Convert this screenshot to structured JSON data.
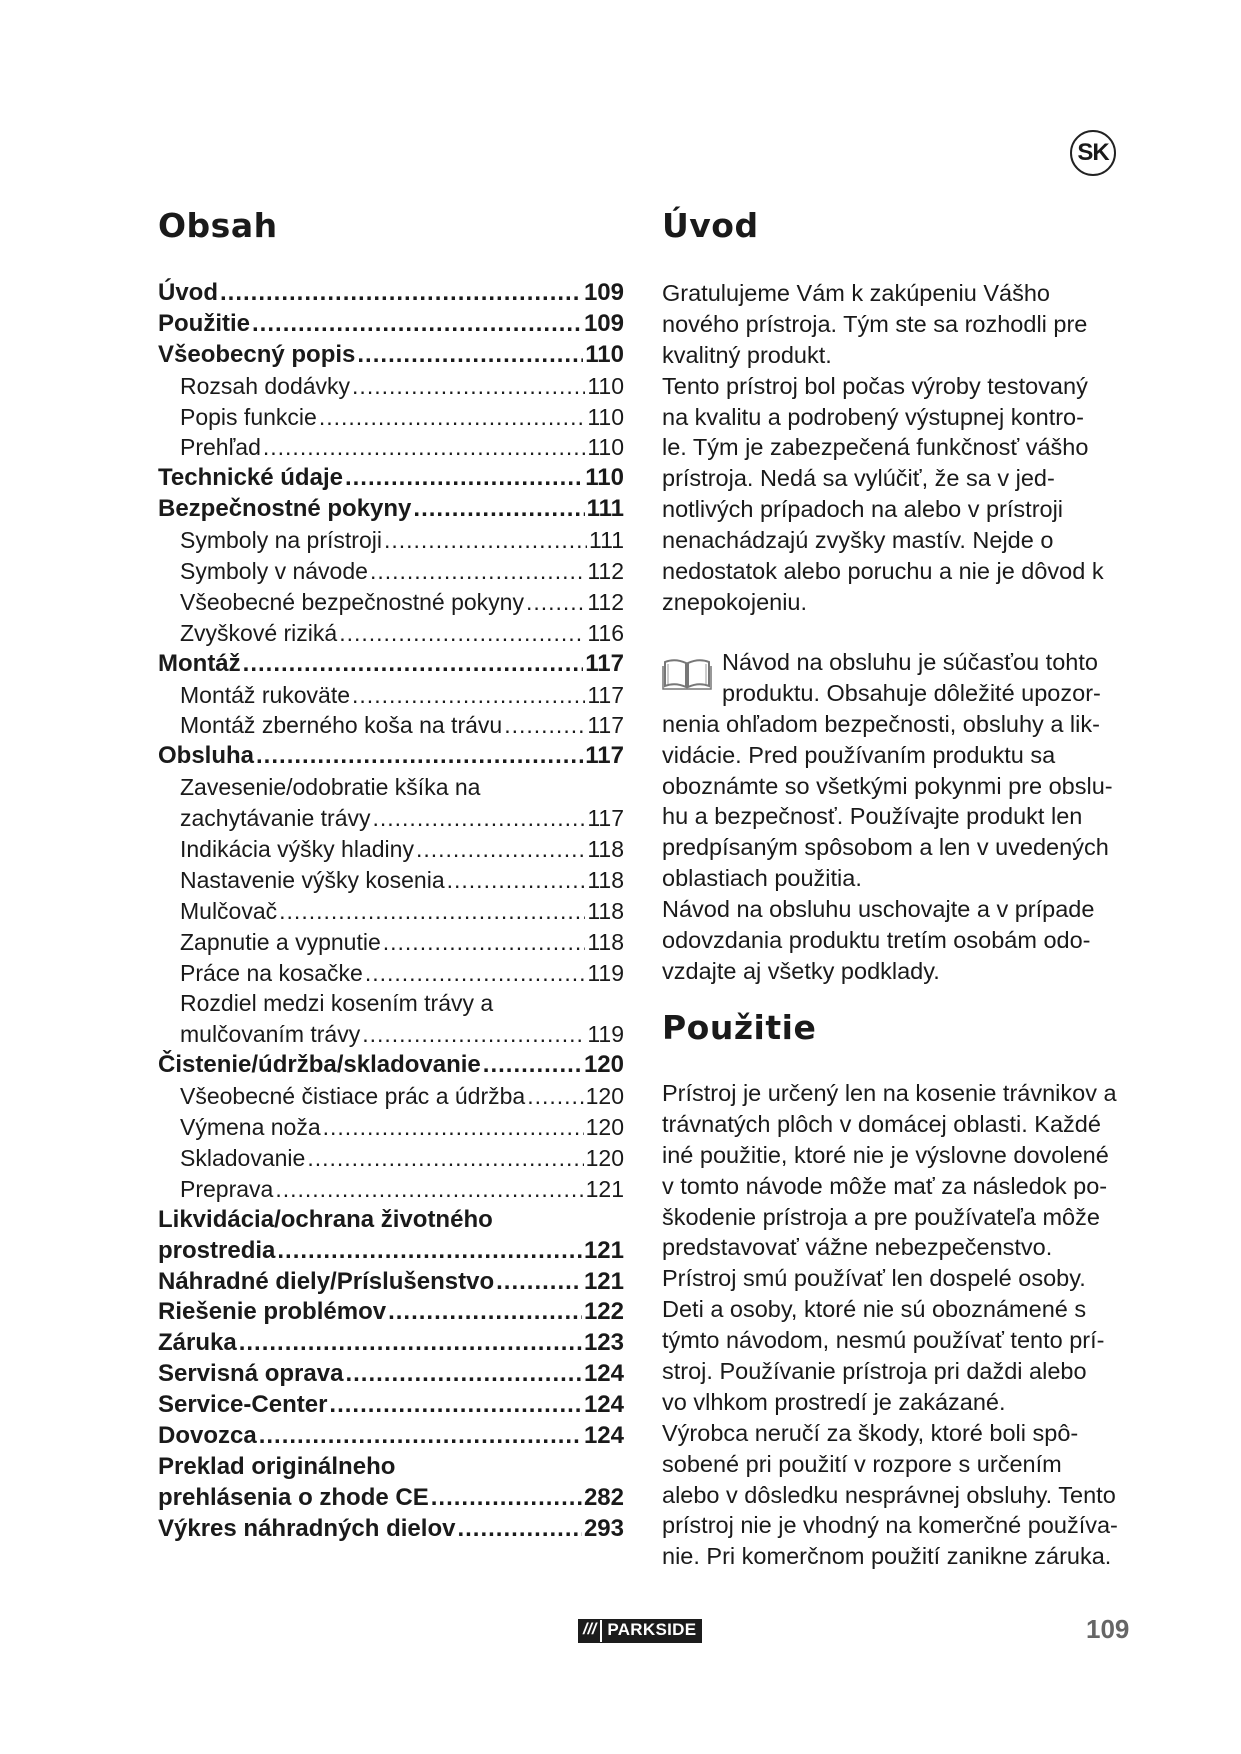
{
  "language_badge": "SK",
  "toc": {
    "title": "Obsah",
    "entries": [
      {
        "label": "Úvod",
        "page": "109",
        "level": 0
      },
      {
        "label": "Použitie",
        "page": "109",
        "level": 0
      },
      {
        "label": "Všeobecný popis",
        "page": "110",
        "level": 0
      },
      {
        "label": "Rozsah dodávky",
        "page": "110",
        "level": 1
      },
      {
        "label": "Popis funkcie",
        "page": "110",
        "level": 1
      },
      {
        "label": "Prehľad",
        "page": "110",
        "level": 1
      },
      {
        "label": "Technické údaje",
        "page": "110",
        "level": 0
      },
      {
        "label": "Bezpečnostné pokyny",
        "page": "111",
        "level": 0
      },
      {
        "label": "Symboly na prístroji",
        "page": "111",
        "level": 1
      },
      {
        "label": "Symboly v návode",
        "page": "112",
        "level": 1
      },
      {
        "label": "Všeobecné bezpečnostné pokyny",
        "page": "112",
        "level": 1
      },
      {
        "label": "Zvyškové riziká",
        "page": "116",
        "level": 1
      },
      {
        "label": "Montáž",
        "page": "117",
        "level": 0
      },
      {
        "label": "Montáž rukoväte",
        "page": "117",
        "level": 1
      },
      {
        "label": "Montáž zberného koša na trávu",
        "page": "117",
        "level": 1
      },
      {
        "label": "Obsluha",
        "page": "117",
        "level": 0
      },
      {
        "label": "Zavesenie/odobratie kšíka na",
        "page": null,
        "level": 1
      },
      {
        "label": "zachytávanie trávy",
        "page": "117",
        "level": 1
      },
      {
        "label": "Indikácia výšky hladiny",
        "page": "118",
        "level": 1
      },
      {
        "label": "Nastavenie výšky kosenia",
        "page": "118",
        "level": 1
      },
      {
        "label": "Mulčovač",
        "page": "118",
        "level": 1
      },
      {
        "label": "Zapnutie a vypnutie",
        "page": "118",
        "level": 1
      },
      {
        "label": "Práce na kosačke",
        "page": "119",
        "level": 1
      },
      {
        "label": "Rozdiel medzi kosením trávy a",
        "page": null,
        "level": 1
      },
      {
        "label": "mulčovaním trávy",
        "page": "119",
        "level": 1
      },
      {
        "label": "Čistenie/údržba/skladovanie",
        "page": "120",
        "level": 0
      },
      {
        "label": "Všeobecné čistiace prác a údržba",
        "page": "120",
        "level": 1
      },
      {
        "label": "Výmena noža",
        "page": "120",
        "level": 1
      },
      {
        "label": "Skladovanie",
        "page": "120",
        "level": 1
      },
      {
        "label": "Preprava",
        "page": "121",
        "level": 1
      },
      {
        "label": "Likvidácia/ochrana životného",
        "page": null,
        "level": 0
      },
      {
        "label": "prostredia",
        "page": "121",
        "level": 0
      },
      {
        "label": "Náhradné diely/Príslušenstvo",
        "page": "121",
        "level": 0
      },
      {
        "label": "Riešenie problémov",
        "page": "122",
        "level": 0
      },
      {
        "label": "Záruka",
        "page": "123",
        "level": 0
      },
      {
        "label": "Servisná oprava",
        "page": "124",
        "level": 0
      },
      {
        "label": "Service-Center",
        "page": "124",
        "level": 0
      },
      {
        "label": "Dovozca",
        "page": "124",
        "level": 0
      },
      {
        "label": "Preklad originálneho",
        "page": null,
        "level": 0
      },
      {
        "label": "prehlásenia o zhode CE",
        "page": "282",
        "level": 0
      },
      {
        "label": "Výkres náhradných dielov",
        "page": "293",
        "level": 0
      }
    ]
  },
  "uvod": {
    "title": "Úvod",
    "para1": [
      "Gratulujeme Vám k zakúpeniu Vášho",
      "nového prístroja. Tým ste sa rozhodli pre",
      "kvalitný produkt.",
      "Tento prístroj bol počas výroby testovaný",
      "na kvalitu a podrobený výstupnej kontro-",
      "le. Tým je zabezpečená funkčnosť vášho",
      "prístroja. Nedá sa vylúčiť, že sa v jed-",
      "notlivých prípadoch na alebo v prístroji",
      "nenachádzajú zvyšky mastív. Nejde o",
      "nedostatok alebo poruchu a nie je dôvod k",
      "znepokojeniu."
    ],
    "book_icon": "open-book-icon",
    "para2": [
      "Návod na obsluhu je súčasťou tohto",
      "produktu. Obsahuje dôležité upozor-",
      "nenia ohľadom  bezpečnosti, obsluhy a lik-",
      "vidácie. Pred používaním produktu sa",
      "oboznámte so všetkými pokynmi pre obslu-",
      "hu a bezpečnosť. Používajte produkt len",
      "predpísaným spôsobom a len v uvedených",
      "oblastiach použitia.",
      "Návod na obsluhu uschovajte a v prípade",
      "odovzdania produktu tretím osobám odo-",
      "vzdajte aj všetky podklady."
    ]
  },
  "pouzitie": {
    "title": "Použitie",
    "para": [
      "Prístroj je určený len na kosenie trávnikov a",
      "trávnatých plôch v domácej oblasti. Každé",
      "iné použitie, ktoré nie je výslovne dovolené",
      "v tomto návode môže mať za následok po-",
      "škodenie prístroja a pre používateľa môže",
      "predstavovať vážne nebezpečenstvo.",
      "Prístroj smú používať len dospelé osoby.",
      "Deti a osoby, ktoré nie sú oboznámené s",
      "týmto návodom, nesmú používať tento prí-",
      "stroj. Používanie prístroja pri daždi alebo",
      "vo vlhkom prostredí je zakázané.",
      "Výrobca neručí za škody, ktoré boli spô-",
      "sobené pri použití v rozpore s určením",
      "alebo v dôsledku nesprávnej obsluhy. Tento",
      "prístroj nie je vhodný na komerčné používa-",
      "nie. Pri komerčnom použití zanikne záruka."
    ]
  },
  "footer": {
    "logo_text": "PARKSIDE",
    "logo_slashes": "///",
    "page_number": "109"
  }
}
